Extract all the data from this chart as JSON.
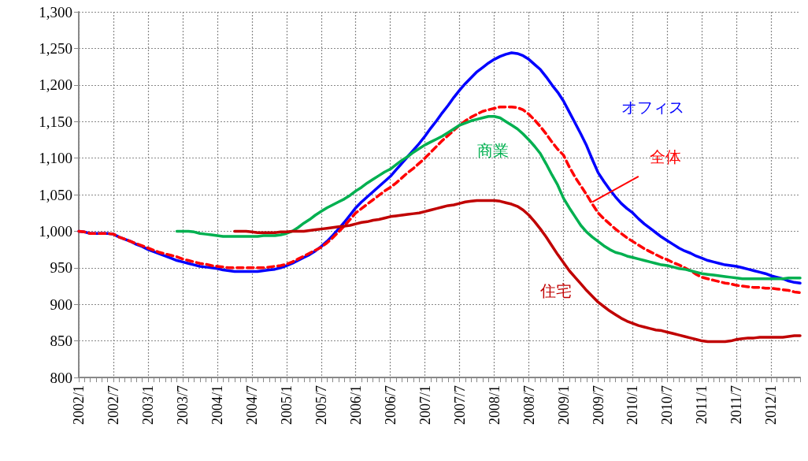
{
  "chart_data": {
    "type": "line",
    "marker": "none",
    "grid": true,
    "categories": [
      "2002/1",
      null,
      null,
      null,
      null,
      null,
      "2002/7",
      null,
      null,
      null,
      null,
      null,
      "2003/1",
      null,
      null,
      null,
      null,
      null,
      "2003/7",
      null,
      null,
      null,
      null,
      null,
      "2004/1",
      null,
      null,
      null,
      null,
      null,
      "2004/7",
      null,
      null,
      null,
      null,
      null,
      "2005/1",
      null,
      null,
      null,
      null,
      null,
      "2005/7",
      null,
      null,
      null,
      null,
      null,
      "2006/1",
      null,
      null,
      null,
      null,
      null,
      "2006/7",
      null,
      null,
      null,
      null,
      null,
      "2007/1",
      null,
      null,
      null,
      null,
      null,
      "2007/7",
      null,
      null,
      null,
      null,
      null,
      "2008/1",
      null,
      null,
      null,
      null,
      null,
      "2008/7",
      null,
      null,
      null,
      null,
      null,
      "2009/1",
      null,
      null,
      null,
      null,
      null,
      "2009/7",
      null,
      null,
      null,
      null,
      null,
      "2010/1",
      null,
      null,
      null,
      null,
      null,
      "2010/7",
      null,
      null,
      null,
      null,
      null,
      "2011/1",
      null,
      null,
      null,
      null,
      null,
      "2011/7",
      null,
      null,
      null,
      null,
      null,
      "2012/1",
      null,
      null,
      null,
      null,
      null
    ],
    "ylim": [
      800,
      1300
    ],
    "yticks": [
      {
        "value": 800,
        "label": "800"
      },
      {
        "value": 850,
        "label": "850"
      },
      {
        "value": 900,
        "label": "900"
      },
      {
        "value": 950,
        "label": "950"
      },
      {
        "value": 1000,
        "label": "1,000"
      },
      {
        "value": 1050,
        "label": "1,050"
      },
      {
        "value": 1100,
        "label": "1,100"
      },
      {
        "value": 1150,
        "label": "1,150"
      },
      {
        "value": 1200,
        "label": "1,200"
      },
      {
        "value": 1250,
        "label": "1,250"
      },
      {
        "value": 1300,
        "label": "1,300"
      }
    ],
    "series": [
      {
        "name": "オフィス",
        "color": "#0000ff",
        "line_style": "solid",
        "values": [
          1000,
          999,
          997,
          997,
          997,
          997,
          996,
          992,
          989,
          986,
          982,
          979,
          975,
          972,
          969,
          966,
          963,
          960,
          958,
          956,
          954,
          952,
          951,
          950,
          949,
          947,
          946,
          945,
          945,
          945,
          945,
          945,
          946,
          947,
          948,
          950,
          953,
          956,
          960,
          964,
          968,
          973,
          979,
          986,
          994,
          1003,
          1012,
          1022,
          1032,
          1040,
          1047,
          1054,
          1061,
          1068,
          1075,
          1084,
          1093,
          1102,
          1111,
          1120,
          1130,
          1141,
          1151,
          1162,
          1172,
          1183,
          1193,
          1202,
          1210,
          1218,
          1224,
          1230,
          1235,
          1239,
          1242,
          1244,
          1243,
          1240,
          1235,
          1228,
          1221,
          1211,
          1200,
          1190,
          1178,
          1163,
          1148,
          1133,
          1117,
          1098,
          1080,
          1068,
          1057,
          1047,
          1038,
          1031,
          1025,
          1017,
          1010,
          1004,
          998,
          992,
          987,
          982,
          977,
          973,
          970,
          966,
          963,
          960,
          958,
          956,
          954,
          953,
          952,
          950,
          948,
          946,
          944,
          942,
          939,
          937,
          935,
          932,
          930,
          929
        ]
      },
      {
        "name": "全体",
        "color": "#ff0000",
        "line_style": "dashed",
        "values": [
          1000,
          999,
          997,
          997,
          997,
          997,
          996,
          992,
          989,
          986,
          983,
          980,
          977,
          974,
          971,
          969,
          967,
          965,
          962,
          960,
          958,
          956,
          955,
          953,
          952,
          951,
          950,
          950,
          950,
          950,
          950,
          950,
          950,
          951,
          952,
          953,
          955,
          958,
          962,
          966,
          970,
          974,
          978,
          984,
          991,
          999,
          1007,
          1016,
          1025,
          1031,
          1037,
          1043,
          1049,
          1055,
          1060,
          1066,
          1073,
          1080,
          1086,
          1093,
          1100,
          1108,
          1116,
          1124,
          1131,
          1138,
          1145,
          1151,
          1156,
          1160,
          1164,
          1166,
          1168,
          1170,
          1170,
          1170,
          1169,
          1166,
          1160,
          1152,
          1143,
          1133,
          1122,
          1112,
          1104,
          1088,
          1074,
          1062,
          1050,
          1037,
          1025,
          1017,
          1010,
          1003,
          997,
          991,
          986,
          981,
          976,
          972,
          968,
          964,
          961,
          957,
          954,
          950,
          946,
          941,
          937,
          935,
          933,
          931,
          929,
          928,
          926,
          925,
          924,
          923,
          923,
          922,
          922,
          921,
          920,
          919,
          917,
          916
        ]
      },
      {
        "name": "商業",
        "color": "#00b050",
        "line_style": "solid",
        "values": [
          null,
          null,
          null,
          null,
          null,
          null,
          null,
          null,
          null,
          null,
          null,
          null,
          null,
          null,
          null,
          null,
          null,
          1000,
          1000,
          1000,
          999,
          997,
          996,
          995,
          994,
          993,
          993,
          993,
          993,
          993,
          993,
          993,
          994,
          994,
          994,
          995,
          997,
          1000,
          1005,
          1011,
          1016,
          1022,
          1027,
          1032,
          1036,
          1040,
          1044,
          1049,
          1055,
          1060,
          1066,
          1071,
          1076,
          1081,
          1085,
          1091,
          1097,
          1102,
          1108,
          1113,
          1118,
          1122,
          1126,
          1130,
          1135,
          1140,
          1145,
          1148,
          1151,
          1153,
          1155,
          1157,
          1157,
          1155,
          1150,
          1145,
          1140,
          1133,
          1125,
          1116,
          1106,
          1092,
          1077,
          1063,
          1045,
          1032,
          1020,
          1008,
          999,
          992,
          986,
          980,
          975,
          971,
          969,
          966,
          964,
          962,
          960,
          958,
          956,
          954,
          953,
          951,
          949,
          948,
          946,
          944,
          942,
          941,
          940,
          939,
          938,
          937,
          936,
          935,
          935,
          935,
          935,
          935,
          935,
          935,
          935,
          936,
          936,
          936
        ]
      },
      {
        "name": "住宅",
        "color": "#c00000",
        "line_style": "solid",
        "values": [
          null,
          null,
          null,
          null,
          null,
          null,
          null,
          null,
          null,
          null,
          null,
          null,
          null,
          null,
          null,
          null,
          null,
          null,
          null,
          null,
          null,
          null,
          null,
          null,
          null,
          null,
          null,
          1000,
          1000,
          1000,
          999,
          998,
          998,
          998,
          998,
          999,
          999,
          1000,
          1000,
          1000,
          1001,
          1002,
          1003,
          1004,
          1005,
          1006,
          1007,
          1008,
          1010,
          1012,
          1013,
          1015,
          1016,
          1018,
          1020,
          1021,
          1022,
          1023,
          1024,
          1025,
          1027,
          1029,
          1031,
          1033,
          1035,
          1036,
          1038,
          1040,
          1041,
          1042,
          1042,
          1042,
          1042,
          1041,
          1039,
          1037,
          1034,
          1029,
          1022,
          1013,
          1003,
          992,
          980,
          968,
          957,
          946,
          937,
          928,
          919,
          911,
          903,
          897,
          891,
          886,
          881,
          877,
          874,
          871,
          869,
          867,
          865,
          864,
          862,
          860,
          858,
          856,
          854,
          852,
          850,
          849,
          849,
          849,
          849,
          850,
          852,
          853,
          854,
          854,
          855,
          855,
          855,
          855,
          855,
          856,
          857,
          857
        ]
      }
    ]
  }
}
